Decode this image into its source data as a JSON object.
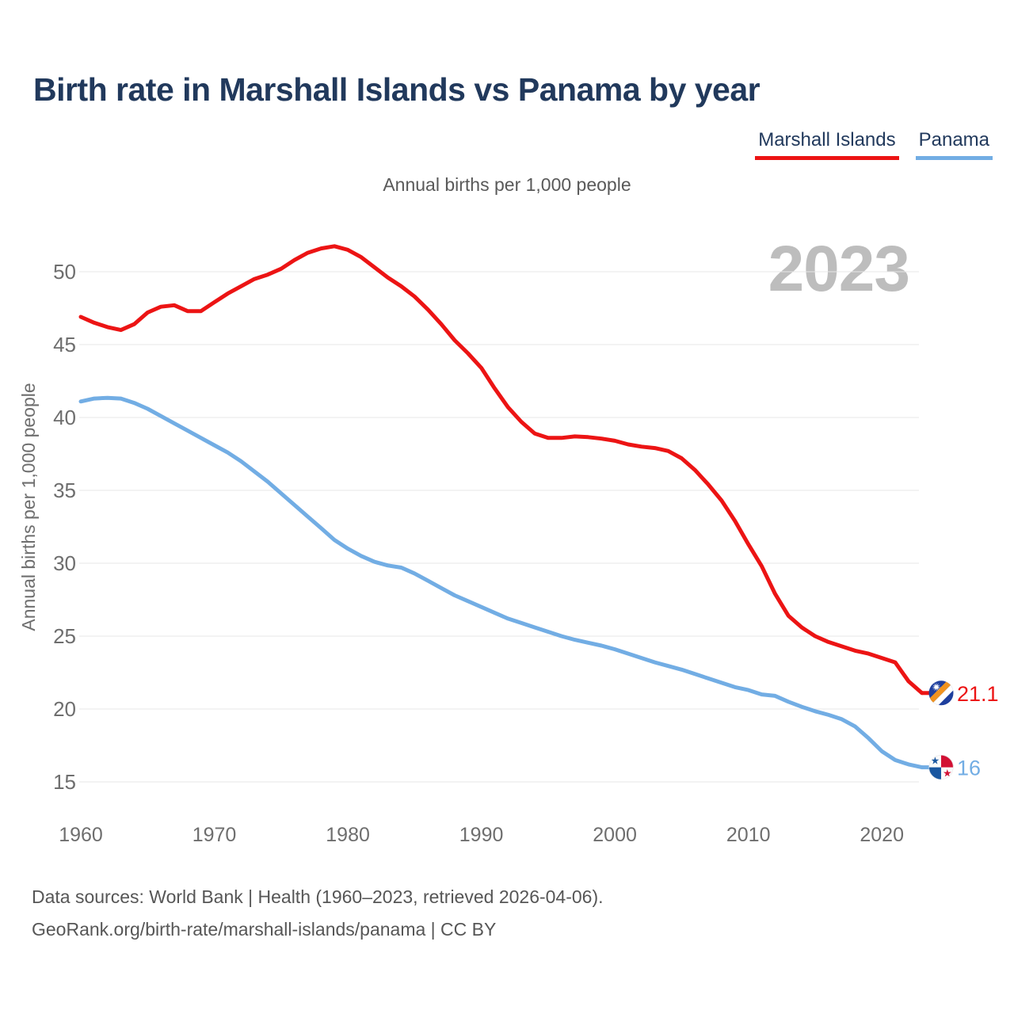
{
  "title": "Birth rate in Marshall Islands vs Panama by year",
  "subtitle": "Annual births per 1,000 people",
  "watermark": "2023",
  "legend": {
    "items": [
      {
        "label": "Marshall Islands"
      },
      {
        "label": "Panama"
      }
    ]
  },
  "footer": {
    "line1": "Data sources: World Bank | Health (1960–2023, retrieved 2026-04-06).",
    "line2": "GeoRank.org/birth-rate/marshall-islands/panama | CC BY"
  },
  "colors": {
    "red": "#ec1414",
    "blue": "#72ade4",
    "title_navy": "#21395c",
    "axis_text": "#6e6e6e",
    "subtitle_gray": "#595959",
    "footer_gray": "#565656",
    "gridline": "#e7e7e7",
    "watermark": "#bdbdbd",
    "flag_marshall_blue": "#1e3f9e",
    "flag_marshall_orange": "#f0931f",
    "flag_panama_red": "#d21034",
    "flag_panama_blue": "#1a57a0"
  },
  "chart_data": {
    "type": "line",
    "title": "Birth rate in Marshall Islands vs Panama by year",
    "ylabel": "Annual births per 1,000 people",
    "xlabel": "",
    "grid": "horizontal",
    "legend_position": "top-right",
    "xlim": [
      1960,
      2023
    ],
    "ylim": [
      15,
      52.5
    ],
    "xticks": [
      1960,
      1970,
      1980,
      1990,
      2000,
      2010,
      2020
    ],
    "yticks": [
      15,
      20,
      25,
      30,
      35,
      40,
      45,
      50
    ],
    "years": [
      1960,
      1961,
      1962,
      1963,
      1964,
      1965,
      1966,
      1967,
      1968,
      1969,
      1970,
      1971,
      1972,
      1973,
      1974,
      1975,
      1976,
      1977,
      1978,
      1979,
      1980,
      1981,
      1982,
      1983,
      1984,
      1985,
      1986,
      1987,
      1988,
      1989,
      1990,
      1991,
      1992,
      1993,
      1994,
      1995,
      1996,
      1997,
      1998,
      1999,
      2000,
      2001,
      2002,
      2003,
      2004,
      2005,
      2006,
      2007,
      2008,
      2009,
      2010,
      2011,
      2012,
      2013,
      2014,
      2015,
      2016,
      2017,
      2018,
      2019,
      2020,
      2021,
      2022,
      2023
    ],
    "series": [
      {
        "name": "Marshall Islands",
        "slug": "marshall-islands",
        "color": "#ec1414",
        "end_label": "21.1",
        "end_value": 21.1,
        "values": [
          46.9,
          46.5,
          46.2,
          46.0,
          46.4,
          47.2,
          47.6,
          47.7,
          47.3,
          47.3,
          47.9,
          48.5,
          49.0,
          49.5,
          49.8,
          50.2,
          50.8,
          51.3,
          51.6,
          51.75,
          51.5,
          51.0,
          50.3,
          49.6,
          49.0,
          48.3,
          47.4,
          46.4,
          45.3,
          44.4,
          43.4,
          42.0,
          40.7,
          39.7,
          38.9,
          38.6,
          38.6,
          38.7,
          38.65,
          38.55,
          38.4,
          38.15,
          38.0,
          37.9,
          37.7,
          37.2,
          36.4,
          35.4,
          34.3,
          32.9,
          31.3,
          29.8,
          27.9,
          26.4,
          25.6,
          25.0,
          24.6,
          24.3,
          24.0,
          23.8,
          23.5,
          23.2,
          21.9,
          21.1
        ]
      },
      {
        "name": "Panama",
        "slug": "panama",
        "color": "#72ade4",
        "end_label": "16",
        "end_value": 16,
        "values": [
          41.1,
          41.3,
          41.35,
          41.3,
          41.0,
          40.6,
          40.1,
          39.6,
          39.1,
          38.6,
          38.1,
          37.6,
          37.0,
          36.3,
          35.6,
          34.8,
          34.0,
          33.2,
          32.4,
          31.6,
          31.0,
          30.5,
          30.1,
          29.85,
          29.7,
          29.3,
          28.8,
          28.3,
          27.8,
          27.4,
          27.0,
          26.6,
          26.2,
          25.9,
          25.6,
          25.3,
          25.0,
          24.75,
          24.55,
          24.35,
          24.1,
          23.8,
          23.5,
          23.2,
          22.95,
          22.7,
          22.4,
          22.1,
          21.8,
          21.5,
          21.3,
          21.0,
          20.9,
          20.5,
          20.15,
          19.85,
          19.6,
          19.3,
          18.8,
          18.0,
          17.1,
          16.5,
          16.2,
          16.0
        ]
      }
    ]
  }
}
